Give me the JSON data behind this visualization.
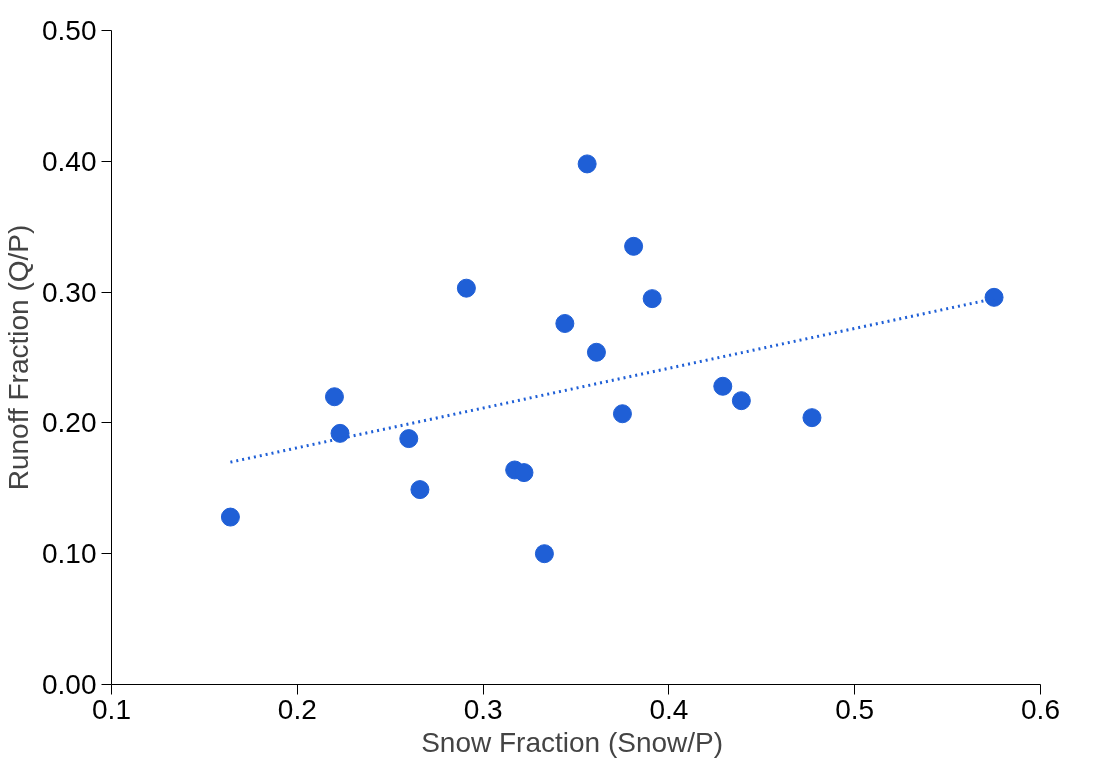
{
  "chart_data": {
    "type": "scatter",
    "xlabel": "Snow Fraction  (Snow/P)",
    "ylabel": "Runoff Fraction (Q/P)",
    "xlim": [
      0.1,
      0.6
    ],
    "xticks": [
      {
        "value": 0.1,
        "label": "0.1"
      },
      {
        "value": 0.2,
        "label": "0.2"
      },
      {
        "value": 0.3,
        "label": "0.3"
      },
      {
        "value": 0.4,
        "label": "0.4"
      },
      {
        "value": 0.5,
        "label": "0.5"
      },
      {
        "value": 0.6,
        "label": "0.6"
      }
    ],
    "ylim": [
      0,
      0.5
    ],
    "yticks": [
      {
        "value": 0,
        "label": "0.00"
      },
      {
        "value": 0.1,
        "label": "0.10"
      },
      {
        "value": 0.2,
        "label": "0.20"
      },
      {
        "value": 0.3,
        "label": "0.30"
      },
      {
        "value": 0.4,
        "label": "0.40"
      },
      {
        "value": 0.5,
        "label": "0.50"
      }
    ],
    "grid": false,
    "marker": "circle",
    "series": [
      {
        "color": "#1f5fd6",
        "x": [
          0.164,
          0.22,
          0.223,
          0.26,
          0.266,
          0.291,
          0.317,
          0.322,
          0.333,
          0.344,
          0.356,
          0.361,
          0.375,
          0.381,
          0.391,
          0.429,
          0.439,
          0.477,
          0.575
        ],
        "values": [
          0.128,
          0.22,
          0.192,
          0.188,
          0.149,
          0.303,
          0.164,
          0.162,
          0.1,
          0.276,
          0.398,
          0.254,
          0.207,
          0.335,
          0.295,
          0.228,
          0.217,
          0.204,
          0.296
        ]
      },
      {
        "type": "line",
        "color": "#1f5fd6",
        "line_style": "dotted",
        "marker": "none",
        "x": [
          0.164,
          0.575
        ],
        "values": [
          0.17,
          0.295
        ]
      }
    ]
  }
}
